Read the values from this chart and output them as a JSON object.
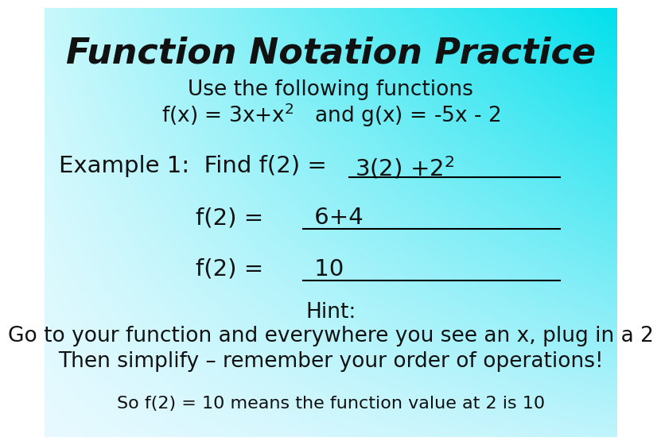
{
  "title": "Function Notation Practice",
  "subtitle_line1": "Use the following functions",
  "subtitle_line2": "f(x) = 3x+x$^2$   and g(x) = -5x - 2",
  "ex1_pre": "Example 1:  Find f(2) = ",
  "ex1_ans": "3(2) +2$^2$",
  "ex2_pre": "f(2) = ",
  "ex2_ans": " 6+4",
  "ex3_pre": "f(2) = ",
  "ex3_ans": " 10",
  "hint": "Hint:",
  "hint_line1": "Go to your function and everywhere you see an x, plug in a 2",
  "hint_line2": "Then simplify – remember your order of operations!",
  "conclusion": "So f(2) = 10 means the function value at 2 is 10",
  "title_fontsize": 32,
  "subtitle_fontsize": 19,
  "example_fontsize": 21,
  "hint_fontsize": 19,
  "hint_body_fontsize": 19,
  "conclusion_fontsize": 16,
  "title_color": "#111111",
  "text_color": "#111111"
}
